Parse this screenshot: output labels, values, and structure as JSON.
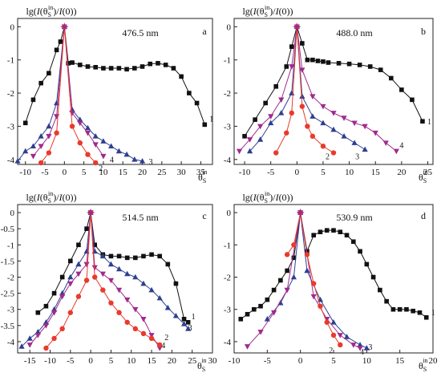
{
  "chart_data": [
    {
      "type": "line",
      "panel": "a",
      "wavelength": "476.5 nm",
      "ylabel": "lg(I(θSin)/I(0))",
      "xlabel": "θSin",
      "xlim": [
        -12,
        38
      ],
      "ylim": [
        -4.15,
        0.25
      ],
      "xticks": [
        "-10",
        "-5",
        "0",
        "5",
        "10",
        "15",
        "20",
        "25",
        "30",
        "35"
      ],
      "yticks": [
        "0",
        "-1",
        "-2",
        "-3",
        "-4"
      ],
      "series": [
        {
          "name": "1",
          "color": "#111111",
          "marker": "square",
          "x": [
            -10,
            -8,
            -6,
            -4,
            -2,
            -1,
            0,
            1,
            2,
            4,
            6,
            8,
            10,
            12,
            14,
            16,
            18,
            20,
            22,
            24,
            26,
            28,
            30,
            32,
            34,
            36
          ],
          "y": [
            -2.9,
            -2.2,
            -1.7,
            -1.4,
            -0.7,
            -0.45,
            0,
            -1.1,
            -1.08,
            -1.15,
            -1.2,
            -1.22,
            -1.25,
            -1.25,
            -1.25,
            -1.28,
            -1.25,
            -1.2,
            -1.12,
            -1.1,
            -1.15,
            -1.25,
            -1.5,
            -2.0,
            -2.3,
            -2.95
          ]
        },
        {
          "name": "3",
          "color": "#2e3f8f",
          "marker": "triangle",
          "x": [
            -12,
            -10,
            -8,
            -6,
            -4,
            -2,
            0,
            2,
            4,
            6,
            8,
            10,
            12,
            14,
            16,
            18,
            20
          ],
          "y": [
            -4.05,
            -3.75,
            -3.6,
            -3.3,
            -3.0,
            -2.3,
            0,
            -2.5,
            -2.8,
            -3.05,
            -3.3,
            -3.45,
            -3.6,
            -3.75,
            -3.85,
            -4.0,
            -4.05
          ]
        },
        {
          "name": "4",
          "color": "#a02a8c",
          "marker": "triangle-down",
          "x": [
            -8,
            -6,
            -4,
            -2,
            0,
            2,
            4,
            6,
            8,
            10
          ],
          "y": [
            -3.9,
            -3.6,
            -3.3,
            -2.7,
            0,
            -2.6,
            -2.9,
            -3.2,
            -3.55,
            -3.9
          ]
        },
        {
          "name": "2",
          "color": "#e83a2d",
          "marker": "circle",
          "x": [
            -6,
            -4,
            -2,
            0,
            2,
            4,
            6,
            8
          ],
          "y": [
            -4.1,
            -3.8,
            -3.2,
            0,
            -3.0,
            -3.5,
            -3.85,
            -4.1
          ]
        }
      ]
    },
    {
      "type": "line",
      "panel": "b",
      "wavelength": "488.0 nm",
      "ylabel": "lg(I(θSin)/I(0))",
      "xlabel": "θSin",
      "xlim": [
        -12,
        26
      ],
      "ylim": [
        -4.15,
        0.25
      ],
      "xticks": [
        "-10",
        "-5",
        "0",
        "5",
        "10",
        "15",
        "20",
        "25"
      ],
      "yticks": [
        "0",
        "-1",
        "-2",
        "-3",
        "-4"
      ],
      "series": [
        {
          "name": "1",
          "color": "#111111",
          "marker": "square",
          "x": [
            -10,
            -8,
            -6,
            -4,
            -2,
            -1,
            0,
            1,
            2,
            3,
            4,
            5,
            6,
            8,
            10,
            12,
            14,
            16,
            18,
            20,
            22,
            24
          ],
          "y": [
            -3.3,
            -2.8,
            -2.3,
            -1.8,
            -1.2,
            -0.6,
            0,
            -0.5,
            -1.0,
            -1.0,
            -1.03,
            -1.05,
            -1.08,
            -1.1,
            -1.12,
            -1.15,
            -1.2,
            -1.3,
            -1.55,
            -1.9,
            -2.2,
            -2.85
          ]
        },
        {
          "name": "4",
          "color": "#a02a8c",
          "marker": "triangle-down",
          "x": [
            -11,
            -9,
            -7,
            -5,
            -3,
            -1,
            0,
            1,
            3,
            5,
            7,
            9,
            11,
            13,
            15,
            17,
            19
          ],
          "y": [
            -3.75,
            -3.4,
            -3.0,
            -2.7,
            -2.2,
            -1.2,
            0,
            -1.3,
            -2.1,
            -2.4,
            -2.6,
            -2.75,
            -2.9,
            -3.0,
            -3.2,
            -3.5,
            -3.75
          ]
        },
        {
          "name": "3",
          "color": "#2e3f8f",
          "marker": "triangle",
          "x": [
            -9,
            -7,
            -5,
            -3,
            -1,
            0,
            1,
            3,
            5,
            7,
            9,
            11,
            13
          ],
          "y": [
            -3.75,
            -3.4,
            -2.9,
            -2.6,
            -2.0,
            0,
            -2.1,
            -2.7,
            -2.9,
            -3.1,
            -3.3,
            -3.5,
            -3.7
          ]
        },
        {
          "name": "2",
          "color": "#e83a2d",
          "marker": "circle",
          "x": [
            -4,
            -2,
            -1,
            0,
            1,
            2,
            3,
            5,
            7
          ],
          "y": [
            -3.8,
            -3.2,
            -2.6,
            0,
            -2.4,
            -3.0,
            -3.3,
            -3.6,
            -3.8
          ]
        }
      ]
    },
    {
      "type": "line",
      "panel": "c",
      "wavelength": "514.5 nm",
      "ylabel": "lg(I(θSin)/I(0))",
      "xlabel": "θSin",
      "xlim": [
        -18,
        30
      ],
      "ylim": [
        -4.35,
        0.25
      ],
      "xticks": [
        "-15",
        "-10",
        "-5",
        "0",
        "5",
        "10",
        "15",
        "20",
        "25",
        "30"
      ],
      "yticks": [
        "0",
        "-0.5",
        "-1",
        "-1.5",
        "-2",
        "-2.5",
        "-3",
        "-3.5",
        "-4"
      ],
      "series": [
        {
          "name": "1",
          "color": "#111111",
          "marker": "square",
          "x": [
            -13,
            -11,
            -9,
            -7,
            -5,
            -3,
            -1,
            0,
            1,
            3,
            5,
            7,
            9,
            11,
            13,
            15,
            17,
            19,
            21,
            23,
            24
          ],
          "y": [
            -3.1,
            -2.9,
            -2.5,
            -2.0,
            -1.5,
            -1.0,
            -0.5,
            0,
            -1.0,
            -1.3,
            -1.35,
            -1.35,
            -1.4,
            -1.4,
            -1.35,
            -1.3,
            -1.35,
            -1.6,
            -2.2,
            -3.3,
            -3.4
          ]
        },
        {
          "name": "3",
          "color": "#2e3f8f",
          "marker": "triangle",
          "x": [
            -17,
            -15,
            -13,
            -11,
            -9,
            -7,
            -5,
            -3,
            -1,
            0,
            1,
            3,
            5,
            7,
            9,
            11,
            13,
            15,
            17,
            19,
            21,
            23,
            24
          ],
          "y": [
            -4.15,
            -3.9,
            -3.7,
            -3.4,
            -3.0,
            -2.5,
            -2.0,
            -1.6,
            -1.2,
            0,
            -1.2,
            -1.35,
            -1.6,
            -1.75,
            -1.9,
            -2.0,
            -2.2,
            -2.4,
            -2.65,
            -2.95,
            -3.2,
            -3.45,
            -3.6
          ]
        },
        {
          "name": "4",
          "color": "#a02a8c",
          "marker": "triangle-down",
          "x": [
            -15,
            -13,
            -11,
            -9,
            -7,
            -5,
            -3,
            -1,
            0,
            1,
            3,
            5,
            7,
            9,
            11,
            13,
            15,
            17
          ],
          "y": [
            -4.1,
            -3.8,
            -3.5,
            -3.1,
            -2.6,
            -2.2,
            -1.9,
            -1.6,
            0,
            -1.7,
            -1.9,
            -2.1,
            -2.4,
            -2.7,
            -3.0,
            -3.3,
            -3.8,
            -4.2
          ]
        },
        {
          "name": "2",
          "color": "#e83a2d",
          "marker": "circle",
          "x": [
            -11,
            -9,
            -7,
            -5,
            -3,
            -1,
            0,
            1,
            3,
            5,
            7,
            9,
            11,
            13,
            15,
            17
          ],
          "y": [
            -4.2,
            -3.9,
            -3.6,
            -3.1,
            -2.6,
            -2.1,
            0,
            -2.0,
            -2.4,
            -2.8,
            -3.1,
            -3.4,
            -3.6,
            -3.75,
            -3.9,
            -4.1
          ]
        }
      ]
    },
    {
      "type": "line",
      "panel": "d",
      "wavelength": "530.9 nm",
      "ylabel": "lg(I(θSin)/I(0))",
      "xlabel": "θSin",
      "xlim": [
        -10,
        20
      ],
      "ylim": [
        -4.35,
        0.25
      ],
      "xticks": [
        "-10",
        "-5",
        "0",
        "5",
        "10",
        "15",
        "20"
      ],
      "yticks": [
        "0",
        "-1",
        "-2",
        "-3",
        "-4"
      ],
      "series": [
        {
          "name": "1",
          "color": "#111111",
          "marker": "square",
          "x": [
            -9,
            -8,
            -7,
            -6,
            -5,
            -4,
            -3,
            -2,
            -1,
            0,
            1,
            2,
            3,
            4,
            5,
            6,
            7,
            8,
            9,
            10,
            11,
            12,
            13,
            14,
            15,
            16,
            17,
            18,
            19
          ],
          "y": [
            -3.3,
            -3.15,
            -3.0,
            -2.9,
            -2.7,
            -2.4,
            -2.1,
            -1.8,
            -1.4,
            0,
            -1.2,
            -0.7,
            -0.6,
            -0.55,
            -0.55,
            -0.6,
            -0.7,
            -0.9,
            -1.2,
            -1.6,
            -2.0,
            -2.4,
            -2.75,
            -3.0,
            -3.0,
            -3.0,
            -3.05,
            -3.1,
            -3.25
          ]
        },
        {
          "name": "3",
          "color": "#2e3f8f",
          "marker": "triangle",
          "x": [
            -5,
            -3,
            -1,
            0,
            1,
            3,
            5,
            7,
            9,
            10
          ],
          "y": [
            -3.3,
            -2.8,
            -2.0,
            0,
            -1.8,
            -2.7,
            -3.4,
            -3.85,
            -4.1,
            -4.2
          ]
        },
        {
          "name": "4",
          "color": "#a02a8c",
          "marker": "triangle-down",
          "x": [
            -8,
            -6,
            -4,
            -2,
            0,
            2,
            4,
            6,
            8,
            9
          ],
          "y": [
            -4.15,
            -3.7,
            -3.1,
            -2.4,
            0,
            -2.6,
            -3.3,
            -3.8,
            -4.1,
            -4.2
          ]
        },
        {
          "name": "2",
          "color": "#e83a2d",
          "marker": "circle",
          "x": [
            -2,
            -1,
            0,
            1,
            2,
            3,
            4,
            5,
            6
          ],
          "y": [
            -1.3,
            -1.0,
            0,
            -1.3,
            -2.2,
            -2.9,
            -3.4,
            -3.8,
            -4.1
          ]
        }
      ]
    }
  ]
}
